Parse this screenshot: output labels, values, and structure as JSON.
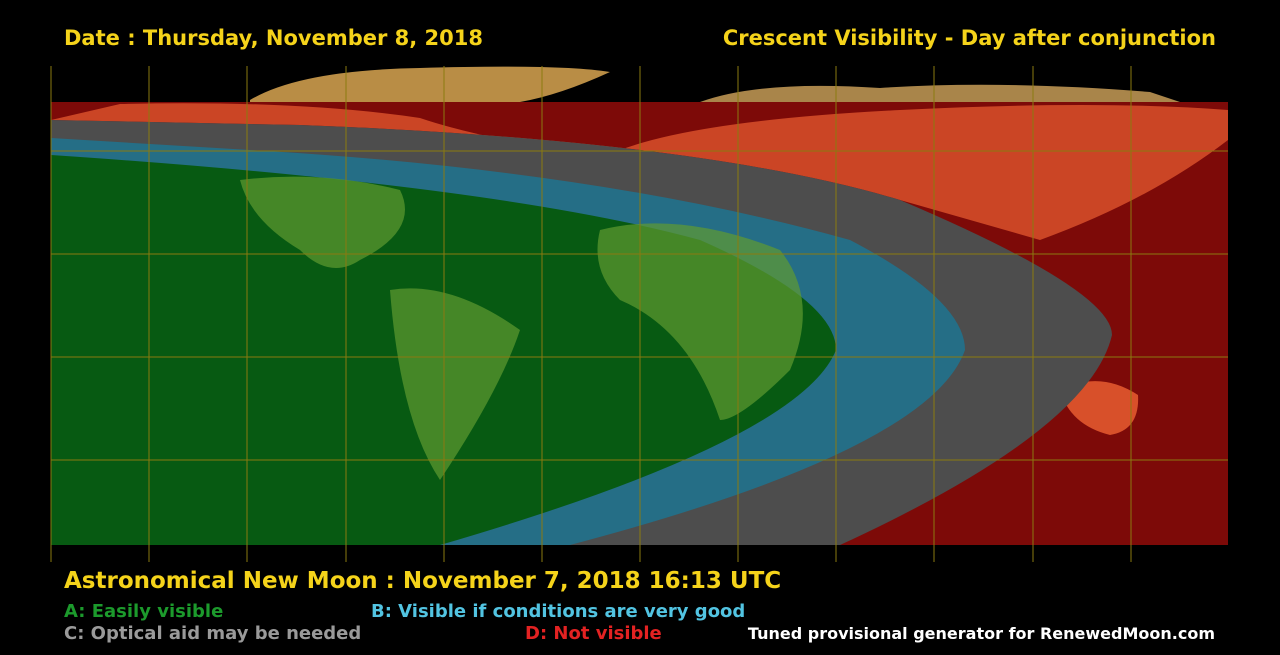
{
  "header": {
    "date": "Date : Thursday, November 8, 2018",
    "title": "Crescent Visibility - Day after conjunction"
  },
  "footer": {
    "new_moon": "Astronomical New Moon : November 7, 2018 16:13 UTC",
    "legend": [
      {
        "label": "A: Easily visible",
        "color": "#1c9a2c"
      },
      {
        "label": "B: Visible if conditions are very good",
        "color": "#52c4e2"
      },
      {
        "label": "C: Optical aid may be needed",
        "color": "#9a9a9a"
      },
      {
        "label": "D: Not visible",
        "color": "#e32222"
      }
    ],
    "credit": "Tuned provisional generator for RenewedMoon.com"
  }
}
